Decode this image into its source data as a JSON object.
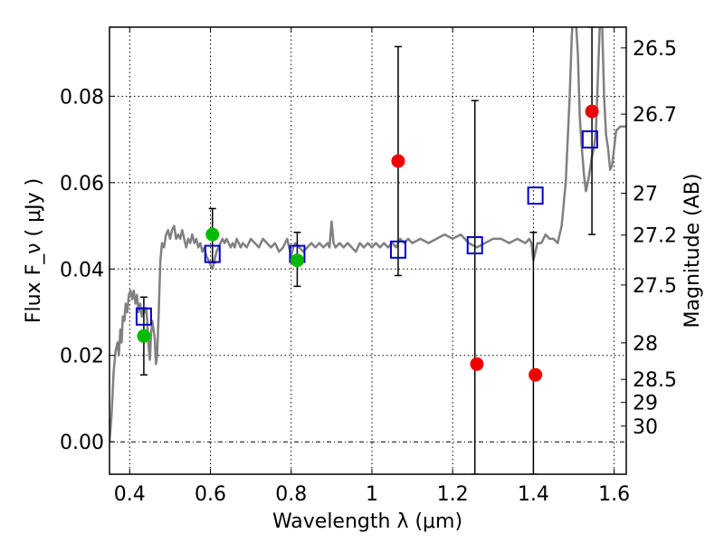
{
  "chart_data": {
    "type": "scatter",
    "xlabel": "Wavelength  λ (μm)",
    "ylabel": "Flux  F_ν  ( μJy )",
    "ylabel_right": "Magnitude (AB)",
    "xlim": [
      0.35,
      1.63
    ],
    "ylim": [
      -0.0075,
      0.096
    ],
    "grid": true,
    "x_ticks": [
      {
        "value": 0.4,
        "label": "0.4"
      },
      {
        "value": 0.6,
        "label": "0.6"
      },
      {
        "value": 0.8,
        "label": "0.8"
      },
      {
        "value": 1.0,
        "label": "1"
      },
      {
        "value": 1.2,
        "label": "1.2"
      },
      {
        "value": 1.4,
        "label": "1.4"
      },
      {
        "value": 1.6,
        "label": "1.6"
      }
    ],
    "y_ticks": [
      {
        "value": 0.0,
        "label": "0.00"
      },
      {
        "value": 0.02,
        "label": "0.02"
      },
      {
        "value": 0.04,
        "label": "0.04"
      },
      {
        "value": 0.06,
        "label": "0.06"
      },
      {
        "value": 0.08,
        "label": "0.08"
      }
    ],
    "mag_ticks": [
      {
        "value": 26.5,
        "label": "26.5"
      },
      {
        "value": 26.7,
        "label": "26.7"
      },
      {
        "value": 27.0,
        "label": "27"
      },
      {
        "value": 27.2,
        "label": "27.2"
      },
      {
        "value": 27.5,
        "label": "27.5"
      },
      {
        "value": 28.0,
        "label": "28"
      },
      {
        "value": 28.5,
        "label": "28.5"
      },
      {
        "value": 29.0,
        "label": "29"
      },
      {
        "value": 30.0,
        "label": "30"
      }
    ],
    "colors": {
      "sed": "#808080",
      "model": "#0000cc",
      "detection": "#00bb00",
      "upper": "#ee0000",
      "errorbar": "#000000",
      "grid": "#000000",
      "zero_line": "#000000"
    },
    "sed": [
      [
        0.35,
        0.0
      ],
      [
        0.355,
        0.006
      ],
      [
        0.36,
        0.016
      ],
      [
        0.365,
        0.021
      ],
      [
        0.37,
        0.023
      ],
      [
        0.373,
        0.02
      ],
      [
        0.377,
        0.026
      ],
      [
        0.38,
        0.023
      ],
      [
        0.383,
        0.029
      ],
      [
        0.387,
        0.028
      ],
      [
        0.39,
        0.032
      ],
      [
        0.394,
        0.03
      ],
      [
        0.398,
        0.034
      ],
      [
        0.402,
        0.035
      ],
      [
        0.406,
        0.033
      ],
      [
        0.41,
        0.035
      ],
      [
        0.414,
        0.032
      ],
      [
        0.418,
        0.034
      ],
      [
        0.422,
        0.03
      ],
      [
        0.426,
        0.032
      ],
      [
        0.43,
        0.029
      ],
      [
        0.434,
        0.031
      ],
      [
        0.438,
        0.03
      ],
      [
        0.441,
        0.031
      ],
      [
        0.444,
        0.027
      ],
      [
        0.447,
        0.022
      ],
      [
        0.45,
        0.019
      ],
      [
        0.453,
        0.025
      ],
      [
        0.456,
        0.028
      ],
      [
        0.459,
        0.026
      ],
      [
        0.462,
        0.024
      ],
      [
        0.465,
        0.018
      ],
      [
        0.468,
        0.02
      ],
      [
        0.472,
        0.03
      ],
      [
        0.476,
        0.042
      ],
      [
        0.48,
        0.046
      ],
      [
        0.485,
        0.045
      ],
      [
        0.49,
        0.048
      ],
      [
        0.495,
        0.049
      ],
      [
        0.5,
        0.047
      ],
      [
        0.505,
        0.049
      ],
      [
        0.51,
        0.05
      ],
      [
        0.515,
        0.047
      ],
      [
        0.52,
        0.048
      ],
      [
        0.525,
        0.047
      ],
      [
        0.53,
        0.049
      ],
      [
        0.535,
        0.047
      ],
      [
        0.54,
        0.045
      ],
      [
        0.545,
        0.047
      ],
      [
        0.55,
        0.046
      ],
      [
        0.555,
        0.048
      ],
      [
        0.56,
        0.046
      ],
      [
        0.565,
        0.047
      ],
      [
        0.57,
        0.045
      ],
      [
        0.575,
        0.046
      ],
      [
        0.58,
        0.044
      ],
      [
        0.585,
        0.045
      ],
      [
        0.59,
        0.043
      ],
      [
        0.595,
        0.042
      ],
      [
        0.6,
        0.041
      ],
      [
        0.605,
        0.04
      ],
      [
        0.61,
        0.042
      ],
      [
        0.615,
        0.044
      ],
      [
        0.62,
        0.045
      ],
      [
        0.625,
        0.046
      ],
      [
        0.63,
        0.047
      ],
      [
        0.635,
        0.046
      ],
      [
        0.64,
        0.047
      ],
      [
        0.645,
        0.046
      ],
      [
        0.65,
        0.045
      ],
      [
        0.655,
        0.046
      ],
      [
        0.66,
        0.045
      ],
      [
        0.665,
        0.047
      ],
      [
        0.67,
        0.046
      ],
      [
        0.675,
        0.045
      ],
      [
        0.68,
        0.046
      ],
      [
        0.69,
        0.045
      ],
      [
        0.7,
        0.047
      ],
      [
        0.71,
        0.046
      ],
      [
        0.72,
        0.045
      ],
      [
        0.73,
        0.047
      ],
      [
        0.74,
        0.046
      ],
      [
        0.75,
        0.045
      ],
      [
        0.76,
        0.046
      ],
      [
        0.77,
        0.044
      ],
      [
        0.78,
        0.045
      ],
      [
        0.79,
        0.047
      ],
      [
        0.8,
        0.043
      ],
      [
        0.805,
        0.045
      ],
      [
        0.81,
        0.046
      ],
      [
        0.82,
        0.045
      ],
      [
        0.83,
        0.044
      ],
      [
        0.84,
        0.045
      ],
      [
        0.85,
        0.046
      ],
      [
        0.86,
        0.045
      ],
      [
        0.87,
        0.046
      ],
      [
        0.88,
        0.045
      ],
      [
        0.89,
        0.046
      ],
      [
        0.895,
        0.045
      ],
      [
        0.9,
        0.051
      ],
      [
        0.905,
        0.046
      ],
      [
        0.91,
        0.045
      ],
      [
        0.92,
        0.046
      ],
      [
        0.93,
        0.045
      ],
      [
        0.94,
        0.046
      ],
      [
        0.95,
        0.045
      ],
      [
        0.96,
        0.044
      ],
      [
        0.97,
        0.046
      ],
      [
        0.98,
        0.045
      ],
      [
        0.99,
        0.046
      ],
      [
        1.0,
        0.045
      ],
      [
        1.01,
        0.046
      ],
      [
        1.02,
        0.045
      ],
      [
        1.03,
        0.046
      ],
      [
        1.04,
        0.045
      ],
      [
        1.05,
        0.046
      ],
      [
        1.06,
        0.045
      ],
      [
        1.07,
        0.047
      ],
      [
        1.08,
        0.046
      ],
      [
        1.09,
        0.047
      ],
      [
        1.1,
        0.046
      ],
      [
        1.12,
        0.047
      ],
      [
        1.14,
        0.046
      ],
      [
        1.16,
        0.047
      ],
      [
        1.18,
        0.048
      ],
      [
        1.2,
        0.047
      ],
      [
        1.22,
        0.048
      ],
      [
        1.24,
        0.046
      ],
      [
        1.26,
        0.045
      ],
      [
        1.28,
        0.046
      ],
      [
        1.3,
        0.047
      ],
      [
        1.32,
        0.047
      ],
      [
        1.34,
        0.046
      ],
      [
        1.36,
        0.047
      ],
      [
        1.38,
        0.046
      ],
      [
        1.39,
        0.047
      ],
      [
        1.395,
        0.046
      ],
      [
        1.4,
        0.042
      ],
      [
        1.405,
        0.044
      ],
      [
        1.41,
        0.046
      ],
      [
        1.42,
        0.046
      ],
      [
        1.43,
        0.048
      ],
      [
        1.44,
        0.047
      ],
      [
        1.45,
        0.047
      ],
      [
        1.46,
        0.046
      ],
      [
        1.47,
        0.05
      ],
      [
        1.48,
        0.06
      ],
      [
        1.49,
        0.08
      ],
      [
        1.495,
        0.094
      ],
      [
        1.498,
        0.098
      ],
      [
        1.505,
        0.098
      ],
      [
        1.51,
        0.09
      ],
      [
        1.515,
        0.075
      ],
      [
        1.52,
        0.068
      ],
      [
        1.525,
        0.062
      ],
      [
        1.53,
        0.058
      ],
      [
        1.535,
        0.06
      ],
      [
        1.54,
        0.063
      ],
      [
        1.545,
        0.066
      ],
      [
        1.55,
        0.068
      ],
      [
        1.555,
        0.072
      ],
      [
        1.56,
        0.085
      ],
      [
        1.565,
        0.098
      ],
      [
        1.57,
        0.098
      ],
      [
        1.575,
        0.08
      ],
      [
        1.58,
        0.071
      ],
      [
        1.585,
        0.068
      ],
      [
        1.59,
        0.063
      ],
      [
        1.595,
        0.064
      ],
      [
        1.6,
        0.068
      ],
      [
        1.605,
        0.072
      ],
      [
        1.615,
        0.073
      ],
      [
        1.63,
        0.073
      ]
    ],
    "series": [
      {
        "marker": "open-square",
        "points": [
          [
            0.435,
            0.029
          ],
          [
            0.605,
            0.0435
          ],
          [
            0.815,
            0.0435
          ],
          [
            1.065,
            0.0445
          ],
          [
            1.255,
            0.0455
          ],
          [
            1.405,
            0.057
          ],
          [
            1.54,
            0.07
          ]
        ]
      },
      {
        "marker": "green-circle",
        "points": [
          [
            0.435,
            0.0245
          ],
          [
            0.605,
            0.048
          ],
          [
            0.815,
            0.042
          ]
        ]
      },
      {
        "marker": "red-circle",
        "points": [
          [
            1.065,
            0.065
          ],
          [
            1.26,
            0.018
          ],
          [
            1.405,
            0.0155
          ],
          [
            1.545,
            0.0765
          ]
        ]
      }
    ],
    "errorbars": [
      {
        "x": 0.435,
        "low": 0.0155,
        "high": 0.0335
      },
      {
        "x": 0.605,
        "low": 0.0415,
        "high": 0.054
      },
      {
        "x": 0.815,
        "low": 0.036,
        "high": 0.0485
      },
      {
        "x": 1.065,
        "low": 0.0385,
        "high": 0.0915
      },
      {
        "x": 1.255,
        "low": -0.0075,
        "high": 0.079
      },
      {
        "x": 1.4,
        "low": -0.0075,
        "high": 0.0485
      },
      {
        "x": 1.545,
        "low": 0.048,
        "high": 0.096
      }
    ]
  }
}
